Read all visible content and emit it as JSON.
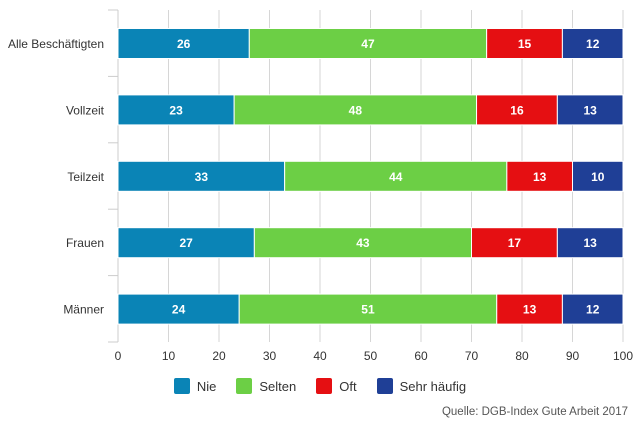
{
  "chart_data": {
    "type": "bar",
    "orientation": "horizontal",
    "stacked": true,
    "categories": [
      "Alle Beschäftigten",
      "Vollzeit",
      "Teilzeit",
      "Frauen",
      "Männer"
    ],
    "series": [
      {
        "name": "Nie",
        "color": "#0a84b6",
        "values": [
          26,
          23,
          33,
          27,
          24
        ]
      },
      {
        "name": "Selten",
        "color": "#6ccf45",
        "values": [
          47,
          48,
          44,
          43,
          51
        ]
      },
      {
        "name": "Oft",
        "color": "#e50f12",
        "values": [
          15,
          16,
          13,
          17,
          13
        ]
      },
      {
        "name": "Sehr häufig",
        "color": "#1f3f96",
        "values": [
          12,
          13,
          10,
          13,
          12
        ]
      }
    ],
    "xlim": [
      0,
      100
    ],
    "xticks": [
      0,
      10,
      20,
      30,
      40,
      50,
      60,
      70,
      80,
      90,
      100
    ],
    "grid": true,
    "legend_position": "bottom"
  },
  "source": "Quelle: DGB-Index Gute Arbeit 2017"
}
